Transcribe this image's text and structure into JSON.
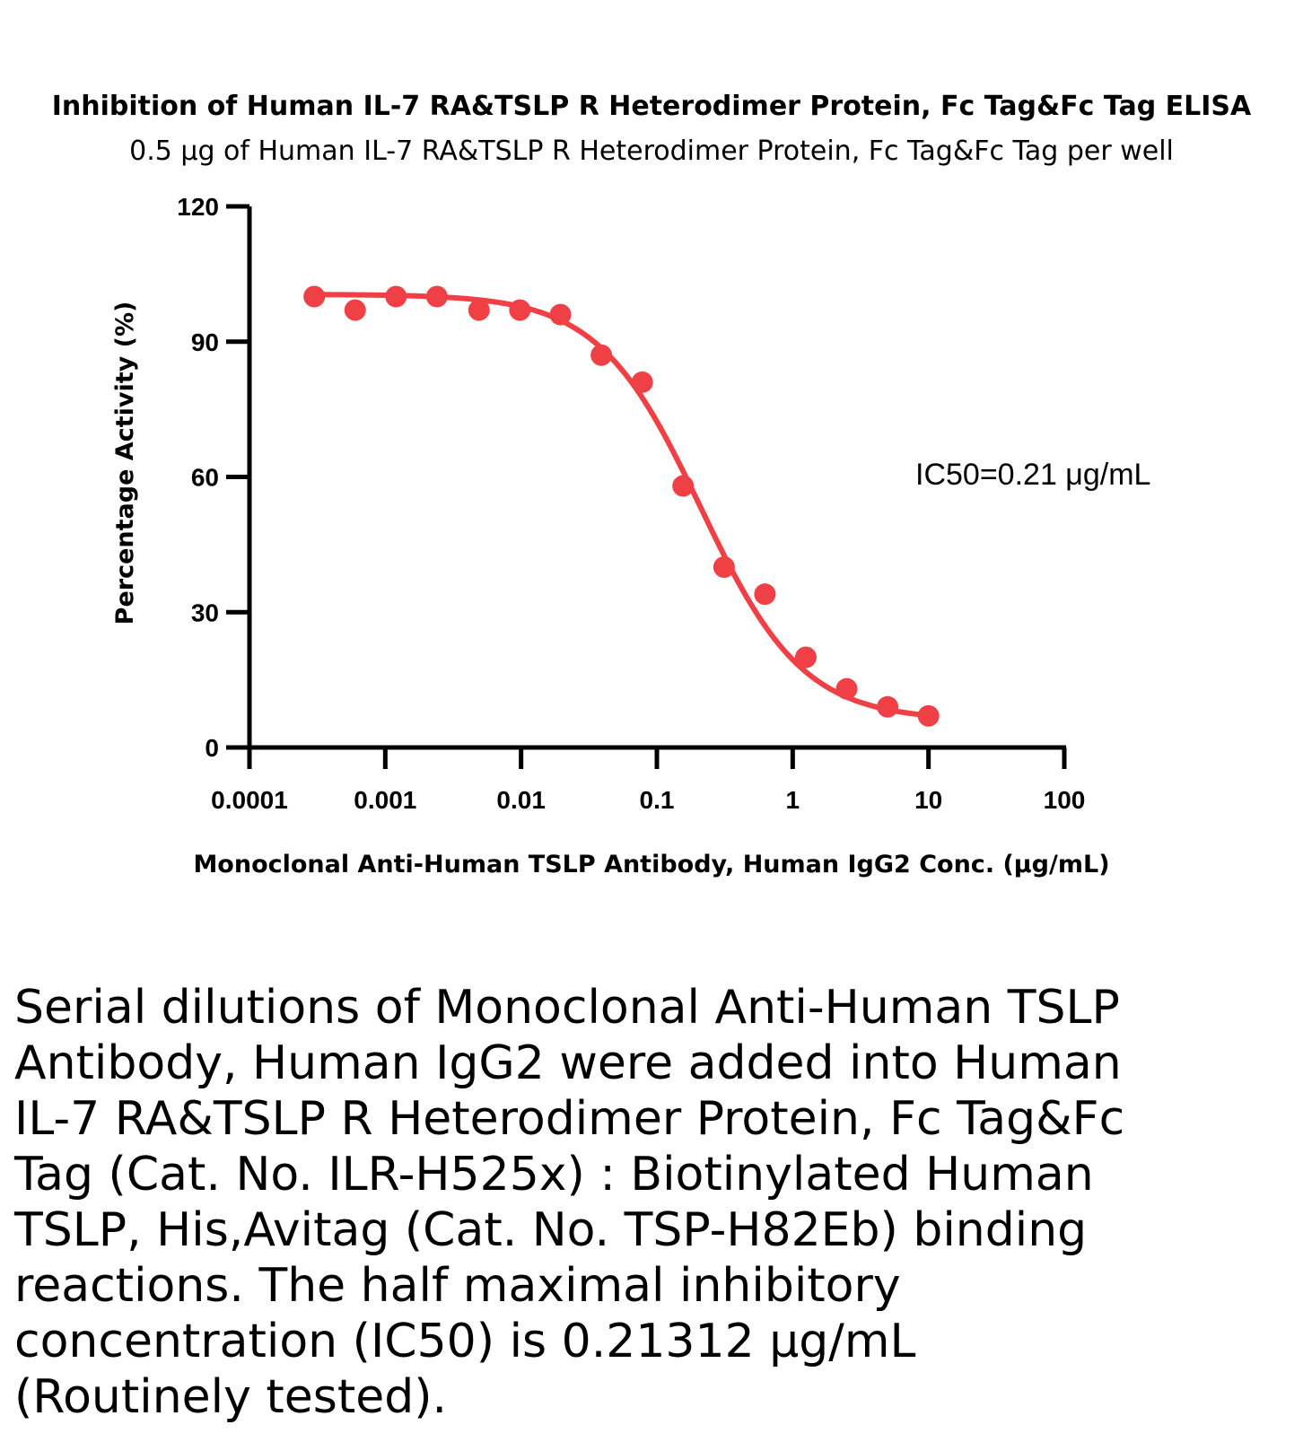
{
  "chart_data": {
    "type": "scatter",
    "title": "Inhibition of Human IL-7 RA&TSLP R Heterodimer Protein, Fc Tag&Fc Tag ELISA",
    "subtitle": "0.5 μg of Human IL-7 RA&TSLP R Heterodimer Protein, Fc Tag&Fc Tag per well",
    "xlabel": "Monoclonal Anti-Human TSLP Antibody, Human IgG2 Conc. (μg/mL)",
    "ylabel": "Percentage Activity (%)",
    "xscale": "log",
    "xlim": [
      0.0001,
      100
    ],
    "ylim": [
      0,
      120
    ],
    "xticks": [
      0.0001,
      0.001,
      0.01,
      0.1,
      1,
      10,
      100
    ],
    "xtick_labels": [
      "0.0001",
      "0.001",
      "0.01",
      "0.1",
      "1",
      "10",
      "100"
    ],
    "yticks": [
      0,
      30,
      60,
      90,
      120
    ],
    "ytick_labels": [
      "0",
      "30",
      "60",
      "90",
      "120"
    ],
    "grid": false,
    "legend": "none",
    "color": "#ef4046",
    "points": {
      "x": [
        0.0003,
        0.0006,
        0.0012,
        0.0024,
        0.0049,
        0.0098,
        0.0195,
        0.039,
        0.078,
        0.156,
        0.3125,
        0.625,
        1.25,
        2.5,
        5,
        10
      ],
      "y": [
        100,
        97,
        100,
        100,
        97,
        97,
        96,
        87,
        81,
        58,
        40,
        34,
        20,
        13,
        9,
        7
      ]
    },
    "fit": {
      "model": "4PL",
      "top": 100.5,
      "bottom": 6,
      "ic50": 0.21,
      "hill": 1.15
    },
    "annotation": "IC50=0.21 μg/mL"
  },
  "caption": "Serial dilutions of Monoclonal Anti-Human TSLP Antibody, Human IgG2 were added into Human IL-7 RA&TSLP R Heterodimer Protein, Fc Tag&Fc Tag (Cat. No. ILR-H525x) : Biotinylated Human TSLP, His,Avitag (Cat. No. TSP-H82Eb) binding reactions. The half maximal inhibitory concentration (IC50) is 0.21312 μg/mL (Routinely tested)."
}
